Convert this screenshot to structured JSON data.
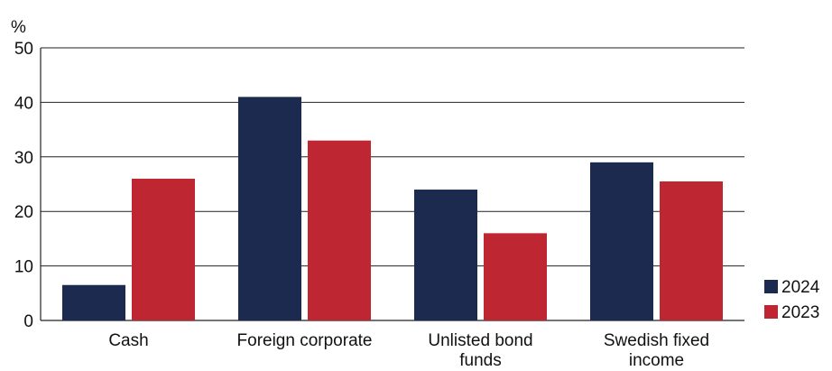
{
  "chart_data": {
    "type": "bar",
    "ylabel": "%",
    "ylim": [
      0,
      50
    ],
    "yticks": [
      0,
      10,
      20,
      30,
      40,
      50
    ],
    "grid": true,
    "categories": [
      [
        "Cash"
      ],
      [
        "Foreign corporate"
      ],
      [
        "Unlisted bond",
        "funds"
      ],
      [
        "Swedish fixed",
        "income"
      ]
    ],
    "series": [
      {
        "name": "2024",
        "color": "#1b2a4e",
        "values": [
          6.5,
          41,
          24,
          29
        ]
      },
      {
        "name": "2023",
        "color": "#be2731",
        "values": [
          26,
          33,
          16,
          25.5
        ]
      }
    ],
    "legend": "right"
  }
}
